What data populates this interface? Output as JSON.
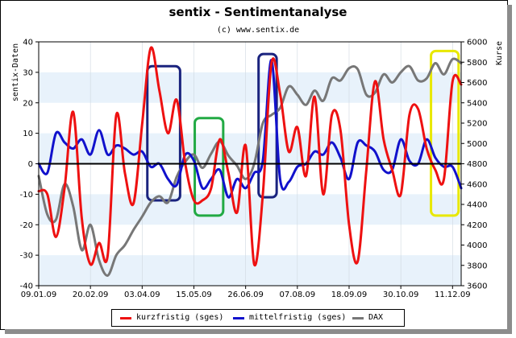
{
  "chart_data": {
    "type": "line",
    "title": "sentix - Sentimentanalyse",
    "subtitle": "(c) www.sentix.de",
    "ylabel_left": "sentix-Daten",
    "ylabel_right": "Kurse",
    "ylim_left": [
      -40,
      40
    ],
    "ylim_right": [
      3600,
      6000
    ],
    "yticks_left": [
      "40",
      "30",
      "20",
      "10",
      "0",
      "-10",
      "-20",
      "-30",
      "-40"
    ],
    "yticks_right": [
      "6000",
      "5800",
      "5600",
      "5400",
      "5200",
      "5000",
      "4800",
      "4600",
      "4400",
      "4200",
      "4000",
      "3800",
      "3600"
    ],
    "xticks": [
      "09.01.09",
      "20.02.09",
      "03.04.09",
      "15.05.09",
      "26.06.09",
      "07.08.09",
      "18.09.09",
      "30.10.09",
      "11.12.09"
    ],
    "x_range_weeks": [
      0,
      49
    ],
    "grid": "alternating horizontal bands",
    "series": [
      {
        "name": "kurzfristig (sges)",
        "color": "#ee1111",
        "axis": "left",
        "x": [
          0,
          1,
          2,
          3,
          4,
          5,
          6,
          7,
          8,
          9,
          10,
          11,
          12,
          13,
          14,
          15,
          16,
          17,
          18,
          19,
          20,
          21,
          22,
          23,
          24,
          25,
          26,
          27,
          28,
          29,
          30,
          31,
          32,
          33,
          34,
          35,
          36,
          37,
          38,
          39,
          40,
          41,
          42,
          43,
          44,
          45,
          46,
          47,
          48,
          49
        ],
        "values": [
          -9,
          -10,
          -24,
          -8,
          17,
          -18,
          -33,
          -26,
          -30,
          16,
          -3,
          -13,
          13,
          38,
          24,
          10,
          21,
          0,
          -12,
          -12,
          -8,
          8,
          -3,
          -16,
          6,
          -33,
          -10,
          33,
          23,
          4,
          12,
          -4,
          22,
          -10,
          16,
          11,
          -20,
          -32,
          -2,
          27,
          8,
          -2,
          -10,
          16,
          18,
          5,
          -2,
          -5,
          27,
          26
        ]
      },
      {
        "name": "mittelfristig (sges)",
        "color": "#1111cc",
        "axis": "left",
        "x": [
          0,
          1,
          2,
          3,
          4,
          5,
          6,
          7,
          8,
          9,
          10,
          11,
          12,
          13,
          14,
          15,
          16,
          17,
          18,
          19,
          20,
          21,
          22,
          23,
          24,
          25,
          26,
          27,
          28,
          29,
          30,
          31,
          32,
          33,
          34,
          35,
          36,
          37,
          38,
          39,
          40,
          41,
          42,
          43,
          44,
          45,
          46,
          47,
          48,
          49
        ],
        "values": [
          0,
          -3,
          10,
          7,
          5,
          8,
          3,
          11,
          3,
          6,
          5,
          3,
          4,
          -1,
          0,
          -5,
          -7,
          3,
          1,
          -8,
          -5,
          -2,
          -11,
          -5,
          -8,
          -3,
          1,
          34,
          -5,
          -6,
          -1,
          0,
          4,
          3,
          7,
          2,
          -5,
          7,
          6,
          4,
          -2,
          -2,
          8,
          1,
          0,
          8,
          2,
          -1,
          -1,
          -8
        ]
      },
      {
        "name": "DAX",
        "color": "#777777",
        "axis": "right",
        "x": [
          0,
          1,
          2,
          3,
          4,
          5,
          6,
          7,
          8,
          9,
          10,
          11,
          12,
          13,
          14,
          15,
          16,
          17,
          18,
          19,
          20,
          21,
          22,
          23,
          24,
          25,
          26,
          27,
          28,
          29,
          30,
          31,
          32,
          33,
          34,
          35,
          36,
          37,
          38,
          39,
          40,
          41,
          42,
          43,
          44,
          45,
          46,
          47,
          48,
          49
        ],
        "values": [
          4680,
          4300,
          4250,
          4600,
          4380,
          3950,
          4200,
          3850,
          3700,
          3900,
          4000,
          4150,
          4280,
          4420,
          4480,
          4420,
          4670,
          4820,
          4890,
          4760,
          4900,
          5020,
          4880,
          4780,
          4650,
          4800,
          5200,
          5280,
          5350,
          5560,
          5480,
          5380,
          5520,
          5420,
          5640,
          5620,
          5740,
          5730,
          5480,
          5500,
          5680,
          5600,
          5700,
          5760,
          5620,
          5640,
          5790,
          5680,
          5830,
          5790
        ]
      }
    ]
  },
  "legend": {
    "items": [
      {
        "label": "kurzfristig (sges)",
        "color": "#ee1111"
      },
      {
        "label": "mittelfristig (sges)",
        "color": "#1111cc"
      },
      {
        "label": "DAX",
        "color": "#777777"
      }
    ]
  },
  "annotations": [
    {
      "kind": "highlight-box",
      "color": "#1a237e",
      "x_weeks": [
        12.6,
        16.4
      ],
      "y_left": [
        -12,
        32
      ]
    },
    {
      "kind": "highlight-box",
      "color": "#22aa44",
      "x_weeks": [
        18.1,
        21.4
      ],
      "y_left": [
        -17,
        15
      ]
    },
    {
      "kind": "highlight-box",
      "color": "#1a237e",
      "x_weeks": [
        25.5,
        27.6
      ],
      "y_left": [
        -11,
        36
      ]
    },
    {
      "kind": "highlight-box",
      "color": "#e8e800",
      "x_weeks": [
        45.5,
        48.7
      ],
      "y_left": [
        -17,
        37
      ]
    }
  ]
}
